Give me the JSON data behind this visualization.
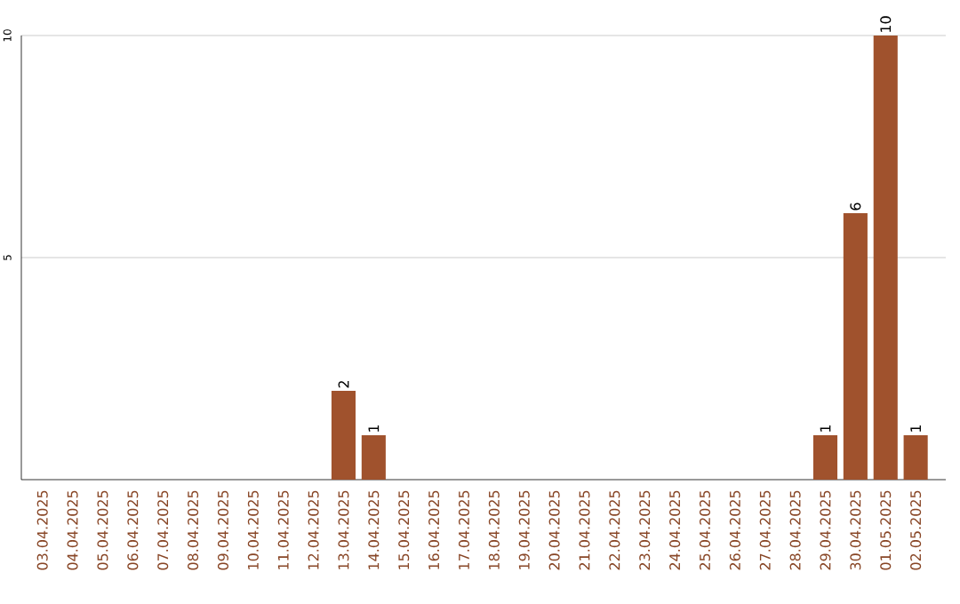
{
  "chart_data": {
    "type": "bar",
    "categories": [
      "03.04.2025",
      "04.04.2025",
      "05.04.2025",
      "06.04.2025",
      "07.04.2025",
      "08.04.2025",
      "09.04.2025",
      "10.04.2025",
      "11.04.2025",
      "12.04.2025",
      "13.04.2025",
      "14.04.2025",
      "15.04.2025",
      "16.04.2025",
      "17.04.2025",
      "18.04.2025",
      "19.04.2025",
      "20.04.2025",
      "21.04.2025",
      "22.04.2025",
      "23.04.2025",
      "24.04.2025",
      "25.04.2025",
      "26.04.2025",
      "27.04.2025",
      "28.04.2025",
      "29.04.2025",
      "30.04.2025",
      "01.05.2025",
      "02.05.2025"
    ],
    "values": [
      0,
      0,
      0,
      0,
      0,
      0,
      0,
      0,
      0,
      0,
      2,
      1,
      0,
      0,
      0,
      0,
      0,
      0,
      0,
      0,
      0,
      0,
      0,
      0,
      0,
      0,
      1,
      6,
      10,
      1
    ],
    "value_labels": [
      null,
      null,
      null,
      null,
      null,
      null,
      null,
      null,
      null,
      null,
      "2",
      "1",
      null,
      null,
      null,
      null,
      null,
      null,
      null,
      null,
      null,
      null,
      null,
      null,
      null,
      null,
      "1",
      "6",
      "10",
      "1"
    ],
    "color": "#a0522d",
    "ylim": [
      0,
      10
    ],
    "yticks": [
      5,
      10
    ],
    "grid": "y"
  }
}
